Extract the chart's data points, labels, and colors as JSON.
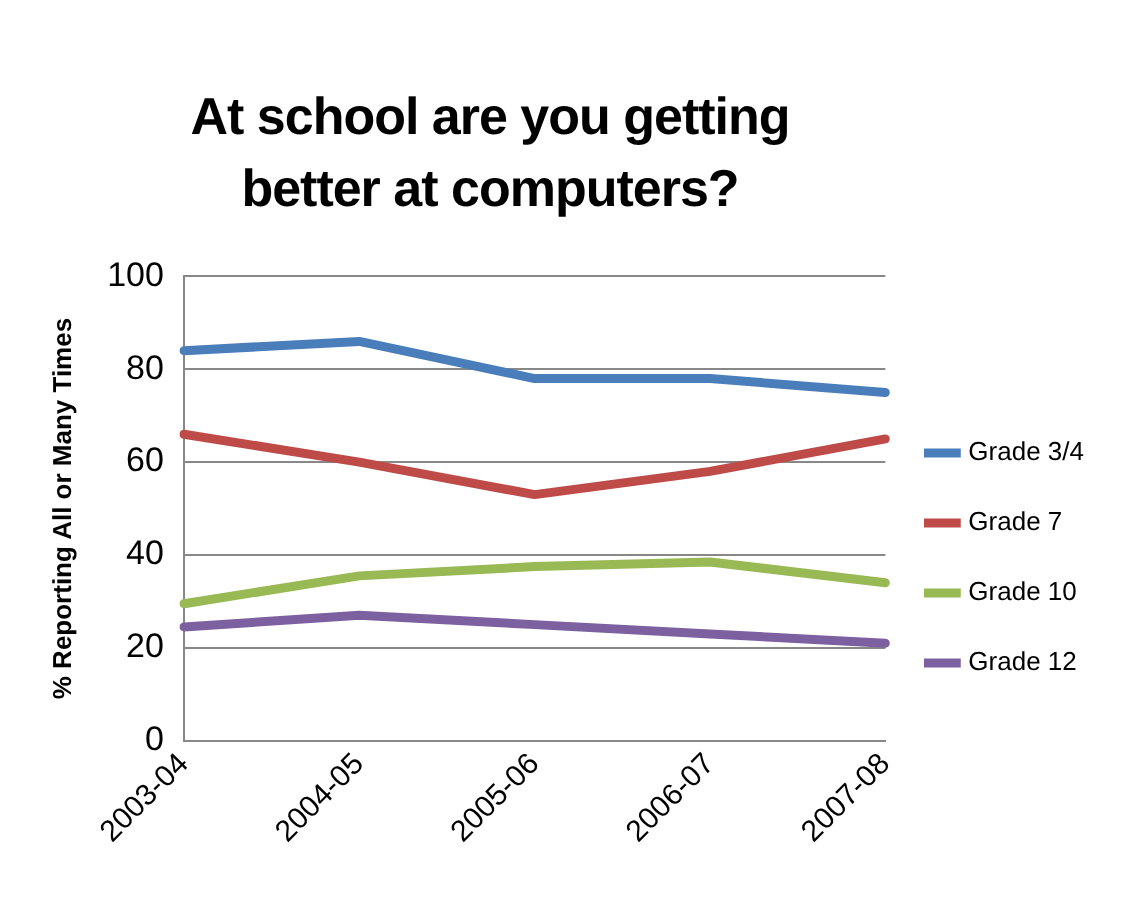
{
  "chart_data": {
    "type": "line",
    "title": "At school are you getting better at computers?",
    "ylabel": "% Reporting All or Many Times",
    "categories": [
      "2003-04",
      "2004-05",
      "2005-06",
      "2006-07",
      "2007-08"
    ],
    "series": [
      {
        "name": "Grade 3/4",
        "color": "#4a7ebb",
        "values": [
          84,
          86,
          78,
          78,
          75
        ]
      },
      {
        "name": "Grade 7",
        "color": "#be4b48",
        "values": [
          66,
          60,
          53,
          58,
          65
        ]
      },
      {
        "name": "Grade 10",
        "color": "#98b954",
        "values": [
          29.5,
          35.5,
          37.5,
          38.5,
          34
        ]
      },
      {
        "name": "Grade 12",
        "color": "#7d60a0",
        "values": [
          24.5,
          27,
          25,
          23,
          21
        ]
      }
    ],
    "ylim": [
      0,
      100
    ],
    "yticks": [
      0,
      20,
      40,
      60,
      80,
      100
    ],
    "grid": "y",
    "legend": "right",
    "marker": "none"
  }
}
